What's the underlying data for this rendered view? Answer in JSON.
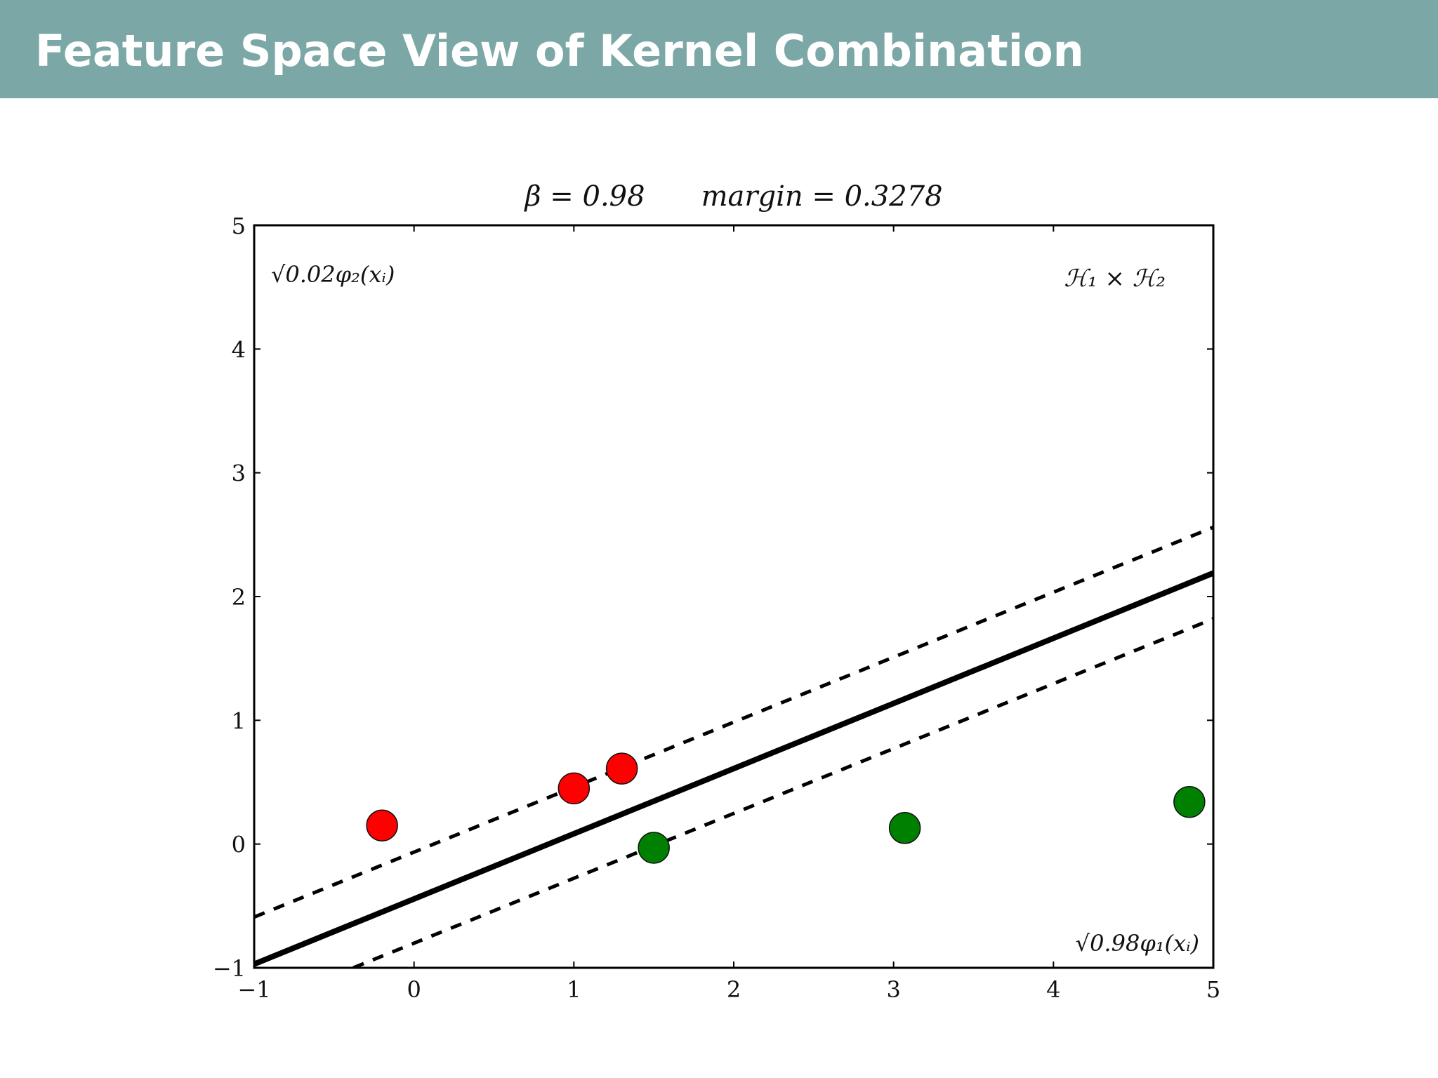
{
  "slide": {
    "title": "Feature Space View of Kernel Combination"
  },
  "chart_data": {
    "type": "scatter",
    "title": "β = 0.98 margin = 0.3278",
    "title_parts": [
      "β = 0.98",
      "margin = 0.3278"
    ],
    "xlabel": "√0.98φ₁(xᵢ)",
    "ylabel": "√0.02φ₂(xᵢ)",
    "annotation": "ℋ₁ × ℋ₂",
    "xlim": [
      -1,
      5
    ],
    "ylim": [
      -1,
      5
    ],
    "x_ticks": [
      -1,
      0,
      1,
      2,
      3,
      4,
      5
    ],
    "x_tick_labels": [
      "−1",
      "0",
      "1",
      "2",
      "3",
      "4",
      "5"
    ],
    "y_ticks": [
      -1,
      0,
      1,
      2,
      3,
      4,
      5
    ],
    "y_tick_labels": [
      "−1",
      "0",
      "1",
      "2",
      "3",
      "4",
      "5"
    ],
    "grid": false,
    "colors": {
      "red": "#ff0000",
      "green": "#008000",
      "line": "#000000"
    },
    "series": [
      {
        "color": "#ff0000",
        "points": [
          [
            -0.2,
            0.15
          ],
          [
            1.0,
            0.45
          ],
          [
            1.3,
            0.61
          ]
        ]
      },
      {
        "color": "#008000",
        "points": [
          [
            1.5,
            -0.03
          ],
          [
            3.07,
            0.13
          ],
          [
            4.85,
            0.34
          ]
        ]
      }
    ],
    "lines": [
      {
        "style": "solid",
        "x": [
          -1,
          5
        ],
        "y": [
          -0.97,
          2.19
        ]
      },
      {
        "style": "dashed",
        "x": [
          -1,
          5
        ],
        "y": [
          -0.59,
          2.56
        ]
      },
      {
        "style": "dashed",
        "x": [
          -0.38,
          5
        ],
        "y": [
          -1.0,
          1.82
        ]
      }
    ]
  }
}
